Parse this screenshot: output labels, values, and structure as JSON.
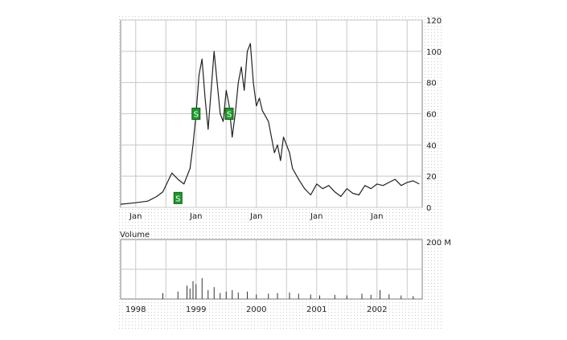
{
  "chart_data": [
    {
      "type": "line",
      "title": "",
      "xlabel": "",
      "ylabel": "",
      "ylim": [
        0,
        120
      ],
      "yticks": [
        0,
        20,
        40,
        60,
        80,
        100,
        120
      ],
      "x_tick_labels": [
        "Jan",
        "Jan",
        "Jan",
        "Jan",
        "Jan"
      ],
      "y_axis_side": "right",
      "grid": true,
      "x_years": [
        1997.75,
        1998.0,
        1998.2,
        1998.35,
        1998.45,
        1998.6,
        1998.7,
        1998.8,
        1998.9,
        1998.95,
        1999.0,
        1999.05,
        1999.1,
        1999.15,
        1999.2,
        1999.25,
        1999.3,
        1999.35,
        1999.4,
        1999.45,
        1999.5,
        1999.55,
        1999.6,
        1999.65,
        1999.7,
        1999.75,
        1999.8,
        1999.85,
        1999.9,
        1999.95,
        2000.0,
        2000.05,
        2000.1,
        2000.2,
        2000.25,
        2000.3,
        2000.35,
        2000.4,
        2000.45,
        2000.5,
        2000.55,
        2000.6,
        2000.7,
        2000.8,
        2000.9,
        2001.0,
        2001.1,
        2001.2,
        2001.3,
        2001.4,
        2001.5,
        2001.6,
        2001.7,
        2001.8,
        2001.9,
        2002.0,
        2002.1,
        2002.2,
        2002.3,
        2002.4,
        2002.5,
        2002.6,
        2002.7
      ],
      "values": [
        2,
        3,
        4,
        7,
        10,
        22,
        18,
        15,
        25,
        40,
        60,
        85,
        95,
        70,
        50,
        75,
        100,
        80,
        60,
        55,
        75,
        65,
        45,
        60,
        80,
        90,
        75,
        100,
        105,
        80,
        65,
        70,
        62,
        55,
        45,
        35,
        40,
        30,
        45,
        40,
        35,
        25,
        18,
        12,
        8,
        15,
        12,
        14,
        10,
        7,
        12,
        9,
        8,
        14,
        12,
        15,
        14,
        16,
        18,
        14,
        16,
        17,
        15
      ],
      "markers": [
        {
          "x": 1998.7,
          "y": 6,
          "label": "S"
        },
        {
          "x": 1999.0,
          "y": 60,
          "label": "S"
        },
        {
          "x": 1999.55,
          "y": 60,
          "label": "S"
        }
      ]
    },
    {
      "type": "bar",
      "title": "Volume",
      "ylabel": "",
      "top_label": "200 M",
      "ylim": [
        0,
        200
      ],
      "x_tick_labels": [
        "1998",
        "1999",
        "2000",
        "2001",
        "2002"
      ],
      "x_years": [
        1998.45,
        1998.7,
        1998.85,
        1998.9,
        1998.95,
        1999.0,
        1999.1,
        1999.2,
        1999.3,
        1999.4,
        1999.5,
        1999.6,
        1999.7,
        1999.85,
        2000.0,
        2000.2,
        2000.35,
        2000.55,
        2000.7,
        2000.9,
        2001.05,
        2001.3,
        2001.5,
        2001.75,
        2001.9,
        2002.05,
        2002.2,
        2002.4,
        2002.6
      ],
      "values": [
        20,
        25,
        45,
        35,
        60,
        50,
        70,
        30,
        40,
        20,
        25,
        30,
        22,
        25,
        15,
        18,
        20,
        22,
        18,
        15,
        12,
        14,
        12,
        18,
        14,
        30,
        16,
        12,
        10
      ]
    }
  ]
}
